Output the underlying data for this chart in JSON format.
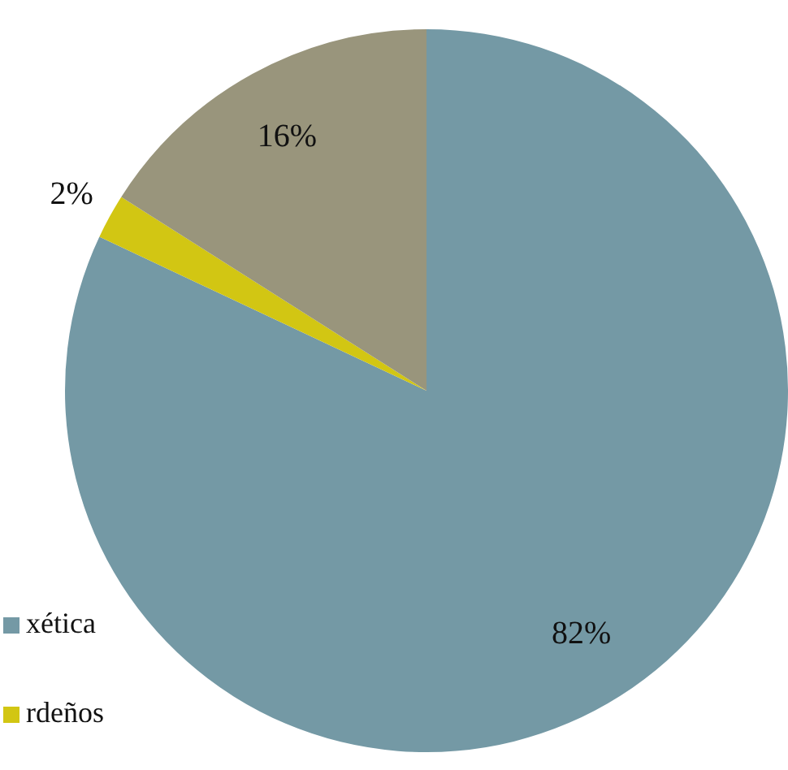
{
  "chart_data": {
    "type": "pie",
    "categories": [
      "xética",
      "rdeños",
      null
    ],
    "values": [
      82,
      2,
      16
    ],
    "colors": [
      "#7499a5",
      "#d2c613",
      "#99957c"
    ],
    "value_labels": [
      "82%",
      "2%",
      "16%"
    ],
    "legend": "bottom left"
  }
}
